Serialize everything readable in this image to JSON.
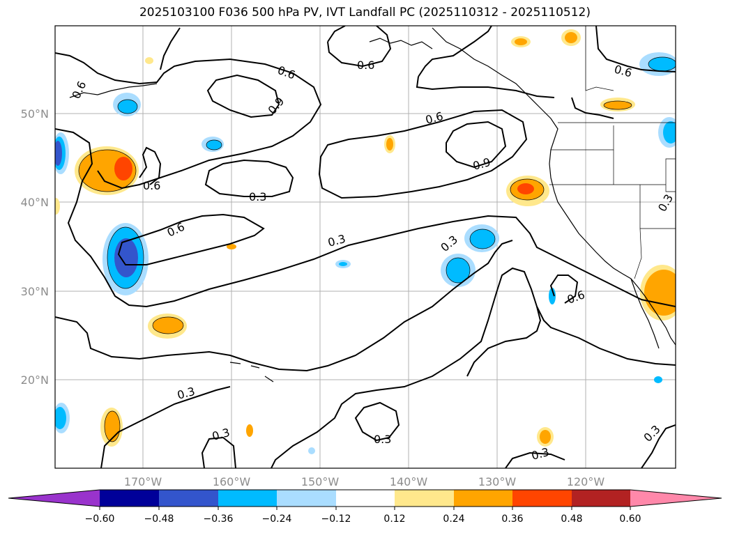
{
  "map": {
    "title": "2025103100 F036 500 hPa PV, IVT Landfall PC (2025110312 - 2025110512)",
    "lat_labels": [
      "50°N",
      "40°N",
      "30°N",
      "20°N"
    ],
    "lon_labels": [
      "170°W",
      "160°W",
      "150°W",
      "140°W",
      "130°W",
      "120°W"
    ],
    "contour_labels": [
      "0.6",
      "0.6",
      "0.6",
      "0.6",
      "0.9",
      "0.6",
      "0.9",
      "0.6",
      "0.3",
      "0.6",
      "0.3",
      "0.3",
      "0.3",
      "0.6",
      "0.3",
      "0.3",
      "0.3",
      "0.3",
      "0.3"
    ]
  },
  "colorbar": {
    "labels": [
      "−0.60",
      "−0.48",
      "−0.36",
      "−0.24",
      "−0.12",
      "0.12",
      "0.24",
      "0.36",
      "0.48",
      "0.60"
    ],
    "colors": {
      "under": "#9933cc",
      "bins": [
        "#000099",
        "#3355cc",
        "#00bbff",
        "#aaddff",
        "#ffffff",
        "#ffe88c",
        "#ffa500",
        "#ff4500",
        "#b22222"
      ],
      "over": "#ff88aa"
    }
  },
  "colors": {
    "ocean": "#ffffff",
    "frame": "#000000",
    "grid": "#b0b0b0",
    "contour": "#000000",
    "tick_label": "#8c8c8c"
  }
}
